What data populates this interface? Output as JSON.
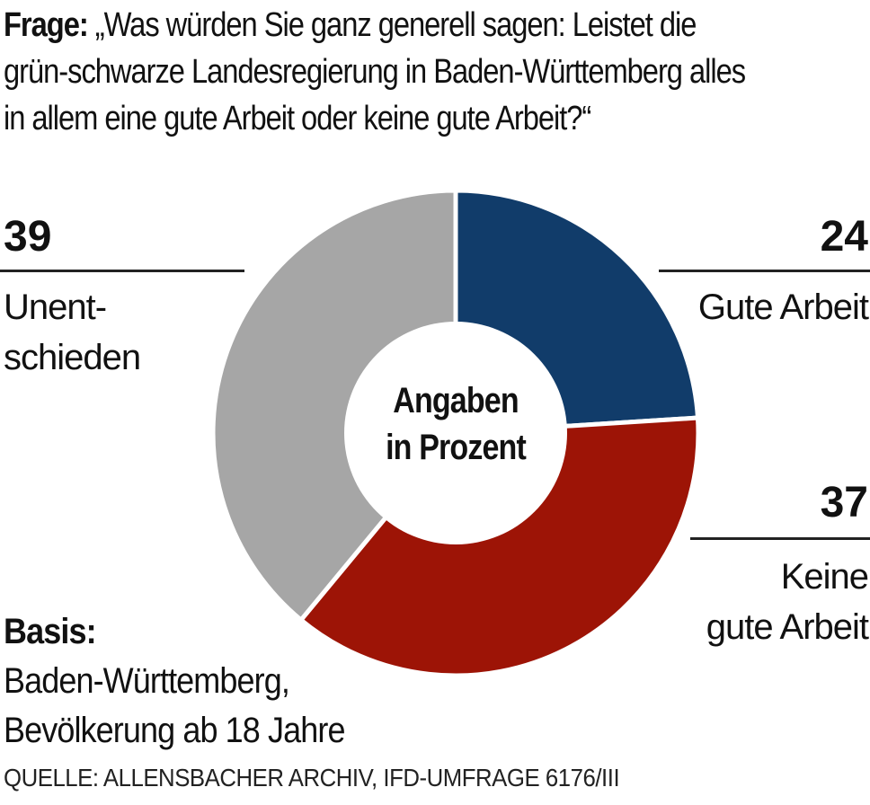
{
  "question": {
    "prefix": "Frage:",
    "text": "„Was würden Sie ganz generell sagen: Leistet die grün-schwarze Landesregierung in Baden-Württemberg alles in allem eine gute Arbeit oder keine gute Arbeit?“"
  },
  "center_label": {
    "line1": "Angaben",
    "line2": "in Prozent"
  },
  "labels": {
    "unentschieden": {
      "value": "39",
      "line1": "Unent-",
      "line2": "schieden"
    },
    "gute": {
      "value": "24",
      "line1": "Gute Arbeit"
    },
    "keine": {
      "value": "37",
      "line1": "Keine",
      "line2": "gute Arbeit"
    }
  },
  "basis": {
    "prefix": "Basis:",
    "line1": "Baden-Württemberg,",
    "line2": "Bevölkerung ab 18 Jahre"
  },
  "source": "QUELLE: ALLENSBACHER ARCHIV, IFD-UMFRAGE 6176/III",
  "chart_data": {
    "type": "pie",
    "donut": true,
    "unit": "Prozent",
    "categories": [
      "Gute Arbeit",
      "Keine gute Arbeit",
      "Unentschieden"
    ],
    "values": [
      24,
      37,
      39
    ],
    "colors": [
      "#113c6a",
      "#9d1406",
      "#a6a6a6"
    ]
  }
}
